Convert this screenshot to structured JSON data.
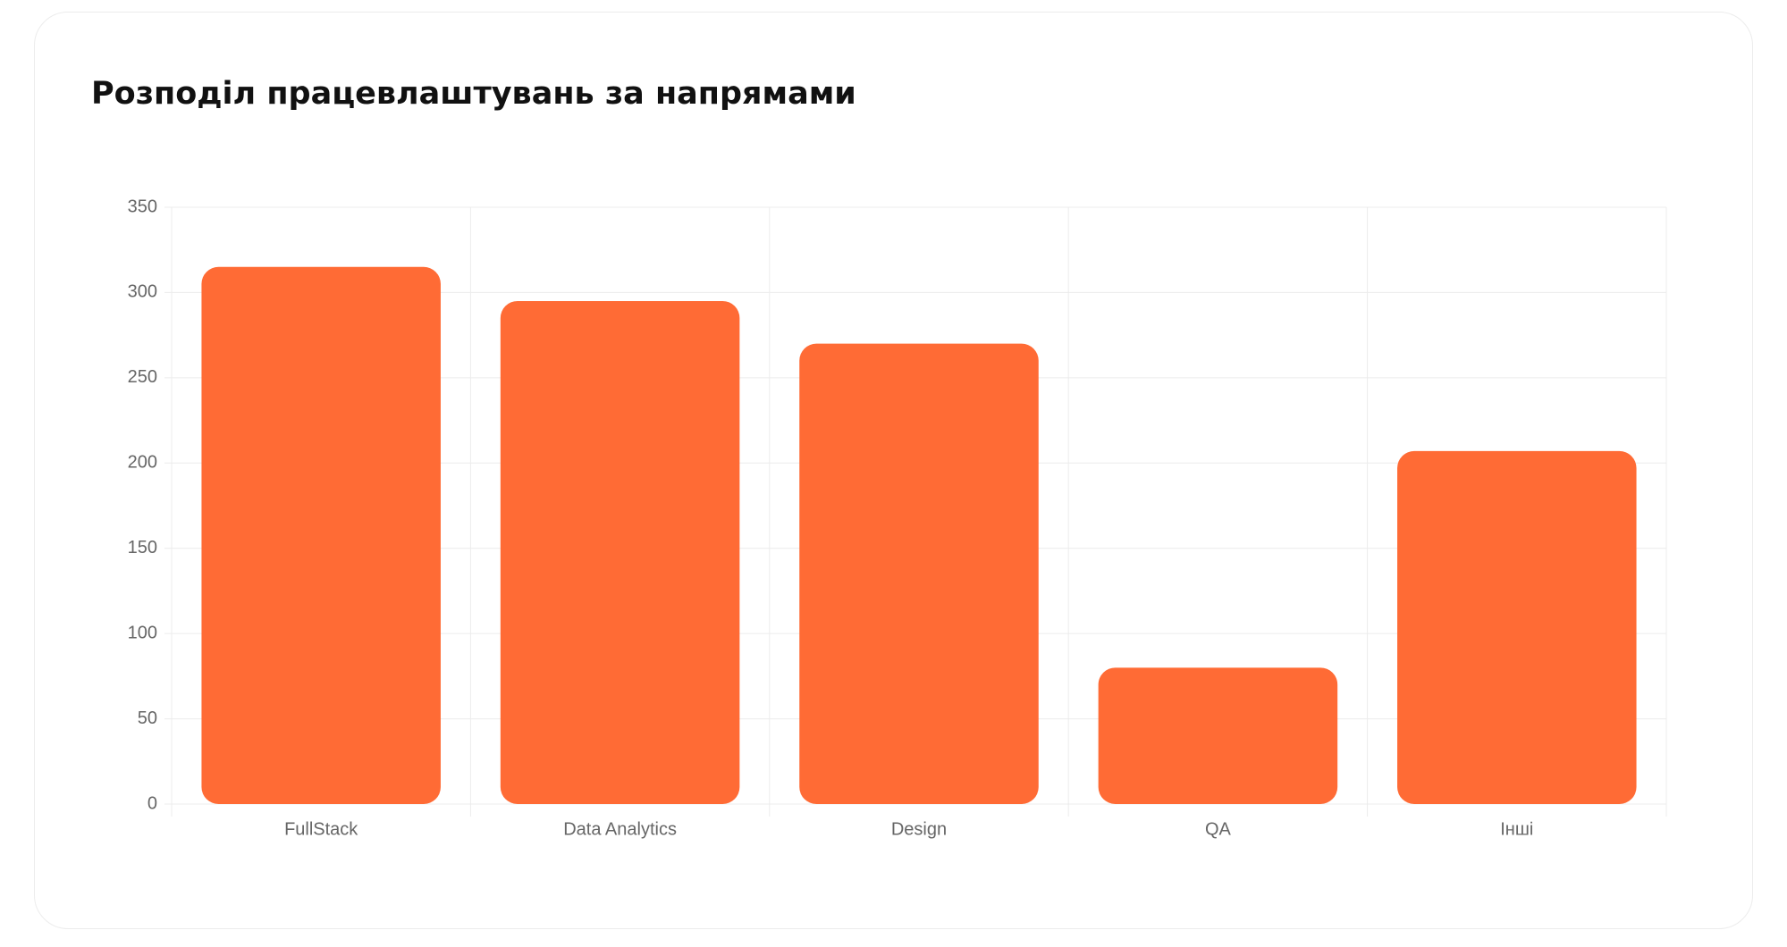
{
  "chart_data": {
    "type": "bar",
    "title": "Розподіл працевлаштувань за напрямами",
    "categories": [
      "FullStack",
      "Data Analytics",
      "Design",
      "QA",
      "Інші"
    ],
    "values": [
      315,
      295,
      270,
      80,
      207
    ],
    "color": "#ff6b35",
    "ylim": [
      0,
      350
    ],
    "yticks": [
      0,
      50,
      100,
      150,
      200,
      250,
      300,
      350
    ],
    "grid": true
  }
}
